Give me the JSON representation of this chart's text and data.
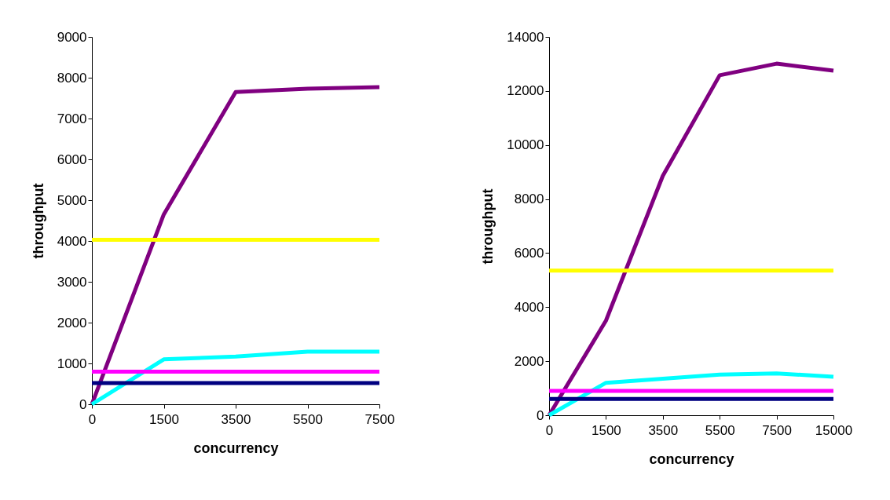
{
  "chart_data": [
    {
      "type": "line",
      "xlabel": "concurrency",
      "ylabel": "throughput",
      "categories": [
        "0",
        "1500",
        "3500",
        "5500",
        "7500"
      ],
      "ylim": [
        0,
        9000
      ],
      "yticks": [
        0,
        1000,
        2000,
        3000,
        4000,
        5000,
        6000,
        7000,
        8000,
        9000
      ],
      "grid": false,
      "legend": false,
      "marker": "none",
      "line_style": "solid",
      "series": [
        {
          "color": "#800080",
          "values": [
            0,
            4650,
            7650,
            7730,
            7770
          ]
        },
        {
          "color": "#00ffff",
          "values": [
            0,
            1100,
            1170,
            1290,
            1290
          ]
        },
        {
          "color": "#ffff00",
          "values": [
            4030,
            4030,
            4030,
            4030,
            4030
          ]
        },
        {
          "color": "#ff00ff",
          "values": [
            800,
            800,
            800,
            800,
            800
          ]
        },
        {
          "color": "#000080",
          "values": [
            520,
            520,
            520,
            520,
            520
          ]
        }
      ]
    },
    {
      "type": "line",
      "xlabel": "concurrency",
      "ylabel": "throughput",
      "categories": [
        "0",
        "1500",
        "3500",
        "5500",
        "7500",
        "15000"
      ],
      "ylim": [
        0,
        14000
      ],
      "yticks": [
        0,
        2000,
        4000,
        6000,
        8000,
        10000,
        12000,
        14000
      ],
      "grid": false,
      "legend": false,
      "marker": "none",
      "line_style": "solid",
      "series": [
        {
          "color": "#800080",
          "values": [
            0,
            3500,
            8860,
            12580,
            13010,
            12750
          ]
        },
        {
          "color": "#00ffff",
          "values": [
            0,
            1200,
            1350,
            1500,
            1550,
            1420
          ]
        },
        {
          "color": "#ffff00",
          "values": [
            5350,
            5350,
            5350,
            5350,
            5350,
            5350
          ]
        },
        {
          "color": "#ff00ff",
          "values": [
            900,
            900,
            900,
            900,
            900,
            900
          ]
        },
        {
          "color": "#000080",
          "values": [
            600,
            600,
            600,
            600,
            600,
            600
          ]
        }
      ]
    }
  ]
}
